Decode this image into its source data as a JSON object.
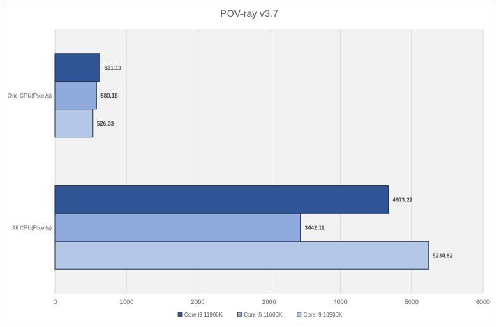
{
  "chart_data": {
    "type": "bar",
    "orientation": "horizontal",
    "title": "POV-ray v3.7",
    "categories": [
      "One CPU(Pixel/s)",
      "All CPU(Pixel/s)"
    ],
    "series": [
      {
        "name": "Core i9 11900K",
        "color": "#2F5597",
        "values": [
          631.19,
          4673.22
        ]
      },
      {
        "name": "Core i5 11600K",
        "color": "#8FAADC",
        "values": [
          580.18,
          3442.11
        ]
      },
      {
        "name": "Core i9 10900K",
        "color": "#B4C7E7",
        "values": [
          526.33,
          5234.82
        ]
      }
    ],
    "xlim": [
      0,
      6000
    ],
    "xticks": [
      0,
      1000,
      2000,
      3000,
      4000,
      5000,
      6000
    ],
    "grid": "vertical",
    "legend": "bottom",
    "plot_background": "#F2F2F2"
  }
}
